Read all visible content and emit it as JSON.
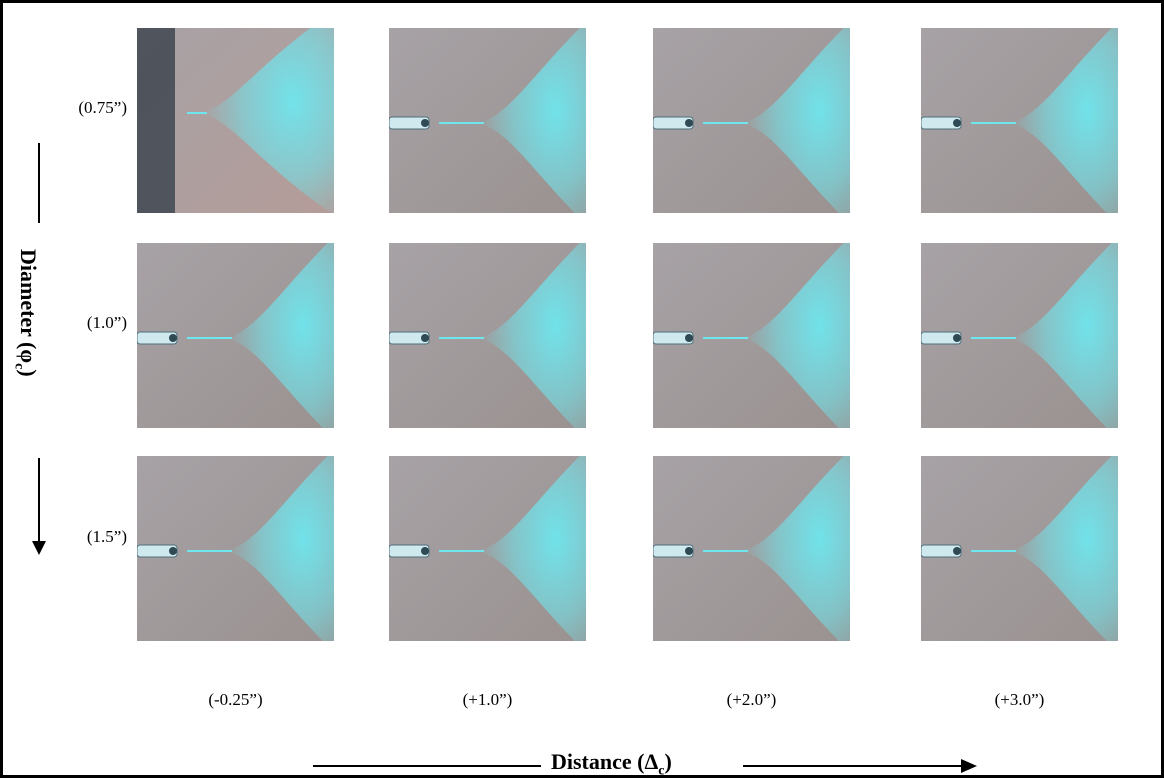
{
  "figure": {
    "rows": [
      {
        "label": "(0.75”)"
      },
      {
        "label": "(1.0”)"
      },
      {
        "label": "(1.5”)"
      }
    ],
    "columns": [
      {
        "label": "(-0.25”)"
      },
      {
        "label": "(+1.0”)"
      },
      {
        "label": "(+2.0”)"
      },
      {
        "label": "(+3.0”)"
      }
    ],
    "y_axis_title": "Diameter (φ",
    "y_axis_sub": "c",
    "y_axis_close": ")",
    "x_axis_title": "Distance (Δ",
    "x_axis_sub": "c",
    "x_axis_close": ")"
  },
  "colors": {
    "spray": "#6fe6ee",
    "background": "#9c9694",
    "dark_edge": "#3f4750"
  }
}
